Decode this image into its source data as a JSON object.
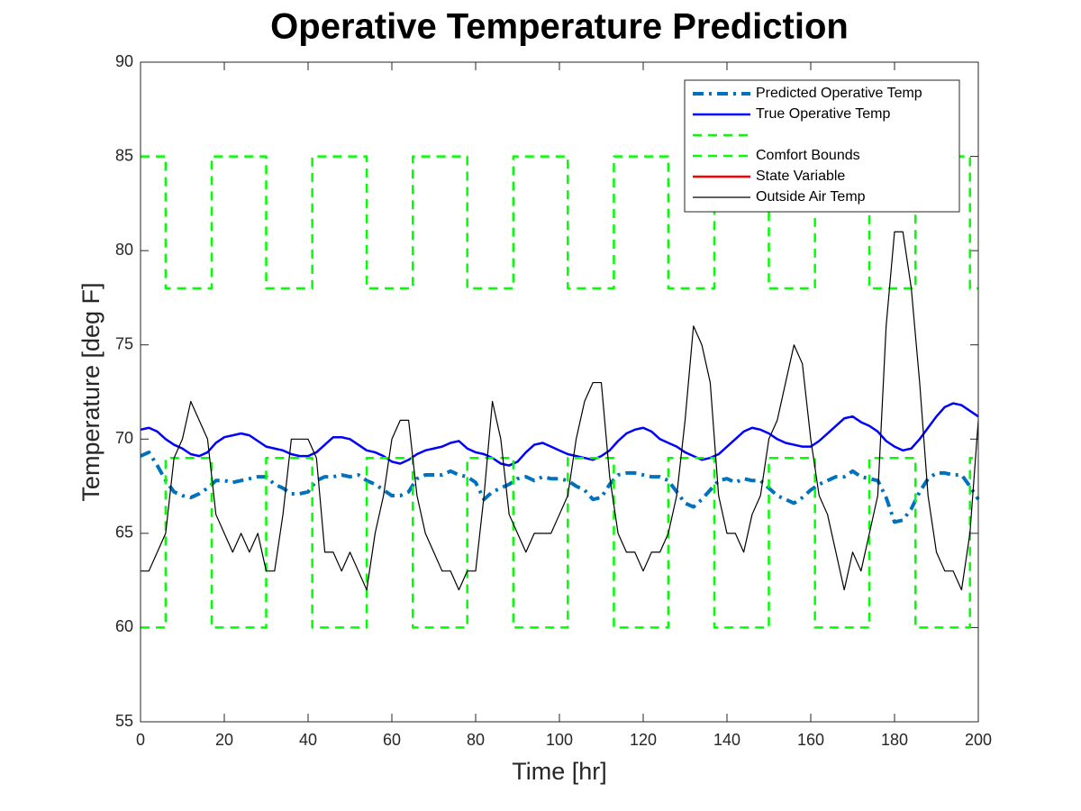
{
  "chart_data": {
    "type": "line",
    "title": "Operative Temperature Prediction",
    "x_label": "Time [hr]",
    "y_label": "Temperature [deg F]",
    "xlim": [
      0,
      200
    ],
    "xticks": [
      0,
      20,
      40,
      60,
      80,
      100,
      120,
      140,
      160,
      180,
      200
    ],
    "ylim": [
      55,
      90
    ],
    "yticks": [
      55,
      60,
      65,
      70,
      75,
      80,
      85,
      90
    ],
    "legend": "top-right",
    "x": [
      0,
      2,
      4,
      6,
      8,
      10,
      12,
      14,
      16,
      18,
      20,
      22,
      24,
      26,
      28,
      30,
      32,
      34,
      36,
      38,
      40,
      42,
      44,
      46,
      48,
      50,
      52,
      54,
      56,
      58,
      60,
      62,
      64,
      66,
      68,
      70,
      72,
      74,
      76,
      78,
      80,
      82,
      84,
      86,
      88,
      90,
      92,
      94,
      96,
      98,
      100,
      102,
      104,
      106,
      108,
      110,
      112,
      114,
      116,
      118,
      120,
      122,
      124,
      126,
      128,
      130,
      132,
      134,
      136,
      138,
      140,
      142,
      144,
      146,
      148,
      150,
      152,
      154,
      156,
      158,
      160,
      162,
      164,
      166,
      168,
      170,
      172,
      174,
      176,
      178,
      180,
      182,
      184,
      186,
      188,
      190,
      192,
      194,
      196,
      198,
      200
    ],
    "series": [
      {
        "name": "Predicted Operative Temp",
        "color": "#0072bd",
        "style": "dashdot",
        "values": [
          69.1,
          69.3,
          68.6,
          67.8,
          67.2,
          67,
          66.9,
          67.1,
          67.4,
          67.8,
          67.8,
          67.7,
          67.8,
          67.9,
          68,
          68,
          67.6,
          67.4,
          67.1,
          67.1,
          67.2,
          67.8,
          68,
          68,
          68.1,
          68,
          68.1,
          67.8,
          67.6,
          67.3,
          67,
          67,
          67.2,
          67.9,
          68.1,
          68.1,
          68.1,
          68.3,
          68.1,
          68,
          67.7,
          66.8,
          67.2,
          67.4,
          67.6,
          67.9,
          68,
          67.8,
          68,
          67.9,
          67.9,
          67.8,
          67.5,
          67.3,
          66.8,
          66.9,
          67.6,
          68.1,
          68.2,
          68.2,
          68.1,
          68,
          68,
          67.8,
          67.2,
          66.6,
          66.4,
          66.8,
          67.3,
          67.8,
          67.9,
          67.7,
          67.9,
          67.8,
          67.8,
          67.4,
          67,
          66.8,
          66.6,
          66.9,
          67.3,
          67.6,
          67.8,
          68,
          68,
          68.3,
          68,
          67.9,
          67.8,
          66.9,
          65.6,
          65.7,
          66.3,
          67.2,
          67.9,
          68.2,
          68.2,
          68.1,
          68.1,
          67.5,
          66.8
        ]
      },
      {
        "name": "True Operative Temp",
        "color": "#0000ff",
        "style": "solid",
        "values": [
          70.5,
          70.6,
          70.4,
          70,
          69.7,
          69.5,
          69.2,
          69.1,
          69.3,
          69.8,
          70.1,
          70.2,
          70.3,
          70.2,
          69.9,
          69.6,
          69.5,
          69.4,
          69.2,
          69.1,
          69.1,
          69.3,
          69.7,
          70.1,
          70.1,
          70,
          69.7,
          69.4,
          69.3,
          69.1,
          68.8,
          68.7,
          68.9,
          69.2,
          69.4,
          69.5,
          69.6,
          69.8,
          69.9,
          69.5,
          69.3,
          69.2,
          69,
          68.7,
          68.6,
          68.8,
          69.3,
          69.7,
          69.8,
          69.6,
          69.4,
          69.2,
          69.1,
          69,
          68.9,
          69.1,
          69.4,
          69.9,
          70.3,
          70.5,
          70.6,
          70.4,
          70,
          69.8,
          69.6,
          69.3,
          69.1,
          68.9,
          69,
          69.2,
          69.6,
          70,
          70.4,
          70.6,
          70.5,
          70.3,
          70,
          69.8,
          69.7,
          69.6,
          69.6,
          69.9,
          70.3,
          70.7,
          71.1,
          71.2,
          70.9,
          70.7,
          70.4,
          69.9,
          69.6,
          69.4,
          69.5,
          70,
          70.6,
          71.2,
          71.7,
          71.9,
          71.8,
          71.5,
          71.2
        ]
      },
      {
        "color": "#00ff00",
        "style": "dashed",
        "x": [
          0,
          6,
          6,
          17,
          17,
          30,
          30,
          41,
          41,
          54,
          54,
          65,
          65,
          78,
          78,
          89,
          89,
          102,
          102,
          113,
          113,
          126,
          126,
          137,
          137,
          150,
          150,
          161,
          161,
          174,
          174,
          185,
          185,
          198,
          198,
          200
        ],
        "values": [
          85,
          85,
          78,
          78,
          85,
          85,
          78,
          78,
          85,
          85,
          78,
          78,
          85,
          85,
          78,
          78,
          85,
          85,
          78,
          78,
          85,
          85,
          78,
          78,
          85,
          85,
          78,
          78,
          85,
          85,
          78,
          78,
          85,
          85,
          78,
          78
        ]
      },
      {
        "name": "Comfort Bounds",
        "color": "#00ff00",
        "style": "dashed",
        "x": [
          0,
          6,
          6,
          17,
          17,
          30,
          30,
          41,
          41,
          54,
          54,
          65,
          65,
          78,
          78,
          89,
          89,
          102,
          102,
          113,
          113,
          126,
          126,
          137,
          137,
          150,
          150,
          161,
          161,
          174,
          174,
          185,
          185,
          198,
          198,
          200
        ],
        "values": [
          60,
          60,
          69,
          69,
          60,
          60,
          69,
          69,
          60,
          60,
          69,
          69,
          60,
          60,
          69,
          69,
          60,
          60,
          69,
          69,
          60,
          60,
          69,
          69,
          60,
          60,
          69,
          69,
          60,
          60,
          69,
          69,
          60,
          60,
          69,
          69
        ]
      },
      {
        "name": "State Variable",
        "color": "#ff0000",
        "style": "solid"
      },
      {
        "name": "Outside Air Temp",
        "color": "#000000",
        "style": "thin",
        "values": [
          63,
          63,
          64,
          65,
          69,
          70,
          72,
          71,
          70,
          66,
          65,
          64,
          65,
          64,
          65,
          63,
          63,
          66,
          70,
          70,
          70,
          69,
          64,
          64,
          63,
          64,
          63,
          62,
          65,
          67,
          70,
          71,
          71,
          67,
          65,
          64,
          63,
          63,
          62,
          63,
          63,
          67,
          72,
          70,
          66,
          65,
          64,
          65,
          65,
          65,
          66,
          67,
          70,
          72,
          73,
          73,
          68,
          65,
          64,
          64,
          63,
          64,
          64,
          65,
          67,
          71,
          76,
          75,
          73,
          67,
          65,
          65,
          64,
          66,
          67,
          70,
          71,
          73,
          75,
          74,
          70,
          67,
          66,
          64,
          62,
          64,
          63,
          65,
          67,
          76,
          81,
          81,
          78,
          73,
          67,
          64,
          63,
          63,
          62,
          65,
          71
        ]
      }
    ]
  }
}
